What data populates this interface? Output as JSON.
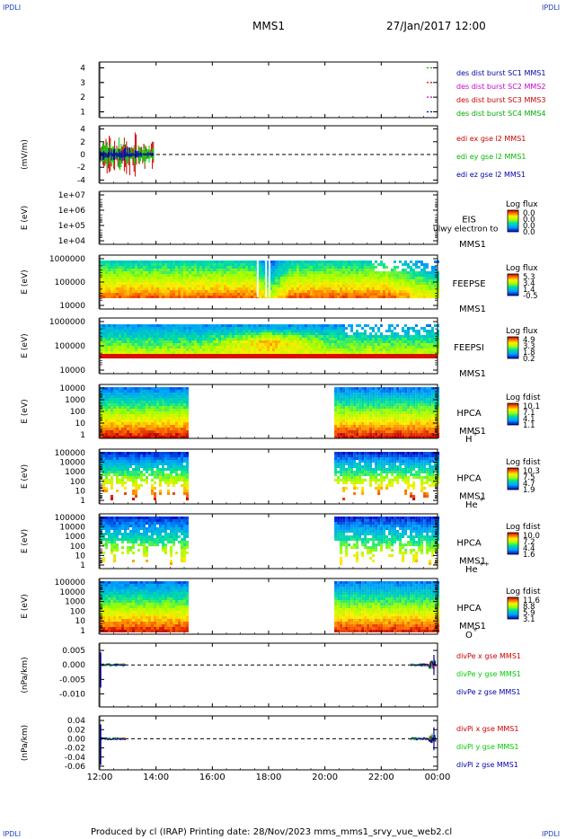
{
  "corners": {
    "label": "IPDLI"
  },
  "header": {
    "spacecraft": "MMS1",
    "date": "27/Jan/2017 12:00"
  },
  "footer": {
    "text": "Produced by cl (IRAP)   Printing date: 28/Nov/2023   mms_mms1_srvy_vue_web2.cl"
  },
  "colors": {
    "mms1": "#0000aa",
    "mms2": "#cc00cc",
    "mms3": "#cc0000",
    "mms4": "#00aa00",
    "x": "#cc0000",
    "y": "#00cc00",
    "z": "#0000aa"
  },
  "chart_data": {
    "type": "stacked-timeseries",
    "x": {
      "range": [
        "12:00",
        "00:00"
      ],
      "ticks": [
        "12:00",
        "14:00",
        "16:00",
        "18:00",
        "20:00",
        "22:00",
        "00:00"
      ]
    },
    "panels": [
      {
        "id": "burst",
        "type": "line",
        "ylabel": "",
        "yticks": [
          "4",
          "3",
          "2",
          "1"
        ],
        "ylim": [
          0.6,
          4.4
        ],
        "legend": [
          {
            "text": "des dist burst SC1 MMS1",
            "color": "#0000aa"
          },
          {
            "text": "des dist burst SC2 MMS2",
            "color": "#cc00cc"
          },
          {
            "text": "des dist burst SC3 MMS3",
            "color": "#cc0000"
          },
          {
            "text": "des dist burst SC4 MMS4",
            "color": "#00aa00"
          }
        ]
      },
      {
        "id": "edi",
        "type": "line",
        "ylabel": "(mV/m)",
        "yticks": [
          "4",
          "2",
          "0",
          "-2",
          "-4"
        ],
        "ylim": [
          -4.5,
          4.5
        ],
        "data_interval": [
          "12:00",
          "14:00"
        ],
        "legend": [
          {
            "text": "edi ex gse l2 MMS1",
            "color": "#cc0000"
          },
          {
            "text": "edi ey gse l2 MMS1",
            "color": "#00bb00"
          },
          {
            "text": "edi ez gse l2 MMS1",
            "color": "#0000aa"
          }
        ]
      },
      {
        "id": "eis",
        "type": "heatmap",
        "ylabel": "E (eV)",
        "yticks": [
          "1e+07",
          "1e+06",
          "1e+05",
          "1e+04"
        ],
        "instrument": [
          "EIS",
          "MMS1"
        ],
        "overlay_text": "ulwy electron to",
        "cbar_title": "Log flux",
        "cbar_values": [
          "0.0",
          "0.0",
          "0.0",
          "0.0"
        ]
      },
      {
        "id": "feepse",
        "type": "heatmap",
        "ylabel": "E (eV)",
        "yticks": [
          "1000000",
          "100000",
          "10000"
        ],
        "instrument": [
          "FEEPSE",
          "MMS1"
        ],
        "cbar_title": "Log flux",
        "cbar_values": [
          "5.3",
          "3.4",
          "1.4",
          "-0.5"
        ]
      },
      {
        "id": "feepsi",
        "type": "heatmap",
        "ylabel": "E (eV)",
        "yticks": [
          "1000000",
          "100000",
          "10000"
        ],
        "instrument": [
          "FEEPSI",
          "MMS1"
        ],
        "cbar_title": "Log flux",
        "cbar_values": [
          "4.9",
          "3.3",
          "1.8",
          "0.2"
        ]
      },
      {
        "id": "hpca-h",
        "type": "heatmap",
        "ylabel": "E (eV)",
        "yticks": [
          "10000",
          "1000",
          "100",
          "10",
          "1"
        ],
        "instrument": [
          "HPCA",
          "MMS1"
        ],
        "species": "H",
        "charge": "+",
        "cbar_title": "Log fdist",
        "cbar_values": [
          "10.1",
          "7.1",
          "4.1",
          "1.1"
        ],
        "data_intervals": [
          [
            "12:00",
            "15:05"
          ],
          [
            "20:20",
            "00:00"
          ]
        ]
      },
      {
        "id": "hpca-he",
        "type": "heatmap",
        "ylabel": "E (eV)",
        "yticks": [
          "100000",
          "10000",
          "1000",
          "100",
          "10",
          "1"
        ],
        "instrument": [
          "HPCA",
          "MMS1"
        ],
        "species": "He",
        "charge": "+",
        "cbar_title": "Log fdist",
        "cbar_values": [
          "10.3",
          "7.5",
          "4.7",
          "1.9"
        ],
        "data_intervals": [
          [
            "12:00",
            "15:05"
          ],
          [
            "20:20",
            "00:00"
          ]
        ]
      },
      {
        "id": "hpca-hepp",
        "type": "heatmap",
        "ylabel": "E (eV)",
        "yticks": [
          "100000",
          "10000",
          "1000",
          "100",
          "10",
          "1"
        ],
        "instrument": [
          "HPCA",
          "MMS1"
        ],
        "species": "He",
        "charge": "++",
        "cbar_title": "Log fdist",
        "cbar_values": [
          "10.0",
          "7.2",
          "4.4",
          "1.6"
        ],
        "data_intervals": [
          [
            "12:00",
            "15:05"
          ],
          [
            "20:20",
            "00:00"
          ]
        ]
      },
      {
        "id": "hpca-o",
        "type": "heatmap",
        "ylabel": "E (eV)",
        "yticks": [
          "100000",
          "10000",
          "1000",
          "100",
          "10",
          "1"
        ],
        "instrument": [
          "HPCA",
          "MMS1"
        ],
        "species": "O",
        "charge": "+",
        "cbar_title": "Log fdist",
        "cbar_values": [
          "11.6",
          "8.8",
          "5.9",
          "3.1"
        ],
        "data_intervals": [
          [
            "12:00",
            "15:05"
          ],
          [
            "20:20",
            "00:00"
          ]
        ]
      },
      {
        "id": "divpe",
        "type": "line",
        "ylabel": "(nPa/km)",
        "yticks": [
          "0.005",
          "0.000",
          "-0.005",
          "-0.010"
        ],
        "ylim": [
          -0.0145,
          0.0075
        ],
        "legend": [
          {
            "text": "divPe x gse MMS1",
            "color": "#cc0000"
          },
          {
            "text": "divPe y gse MMS1",
            "color": "#00cc00"
          },
          {
            "text": "divPe z gse MMS1",
            "color": "#0000aa"
          }
        ]
      },
      {
        "id": "divpi",
        "type": "line",
        "ylabel": "(nPa/km)",
        "yticks": [
          "0.04",
          "0.02",
          "0.00",
          "-0.02",
          "-0.04",
          "-0.06"
        ],
        "ylim": [
          -0.068,
          0.05
        ],
        "legend": [
          {
            "text": "divPi x gse MMS1",
            "color": "#cc0000"
          },
          {
            "text": "divPi y gse MMS1",
            "color": "#00cc00"
          },
          {
            "text": "divPi z gse MMS1",
            "color": "#0000aa"
          }
        ]
      }
    ]
  }
}
